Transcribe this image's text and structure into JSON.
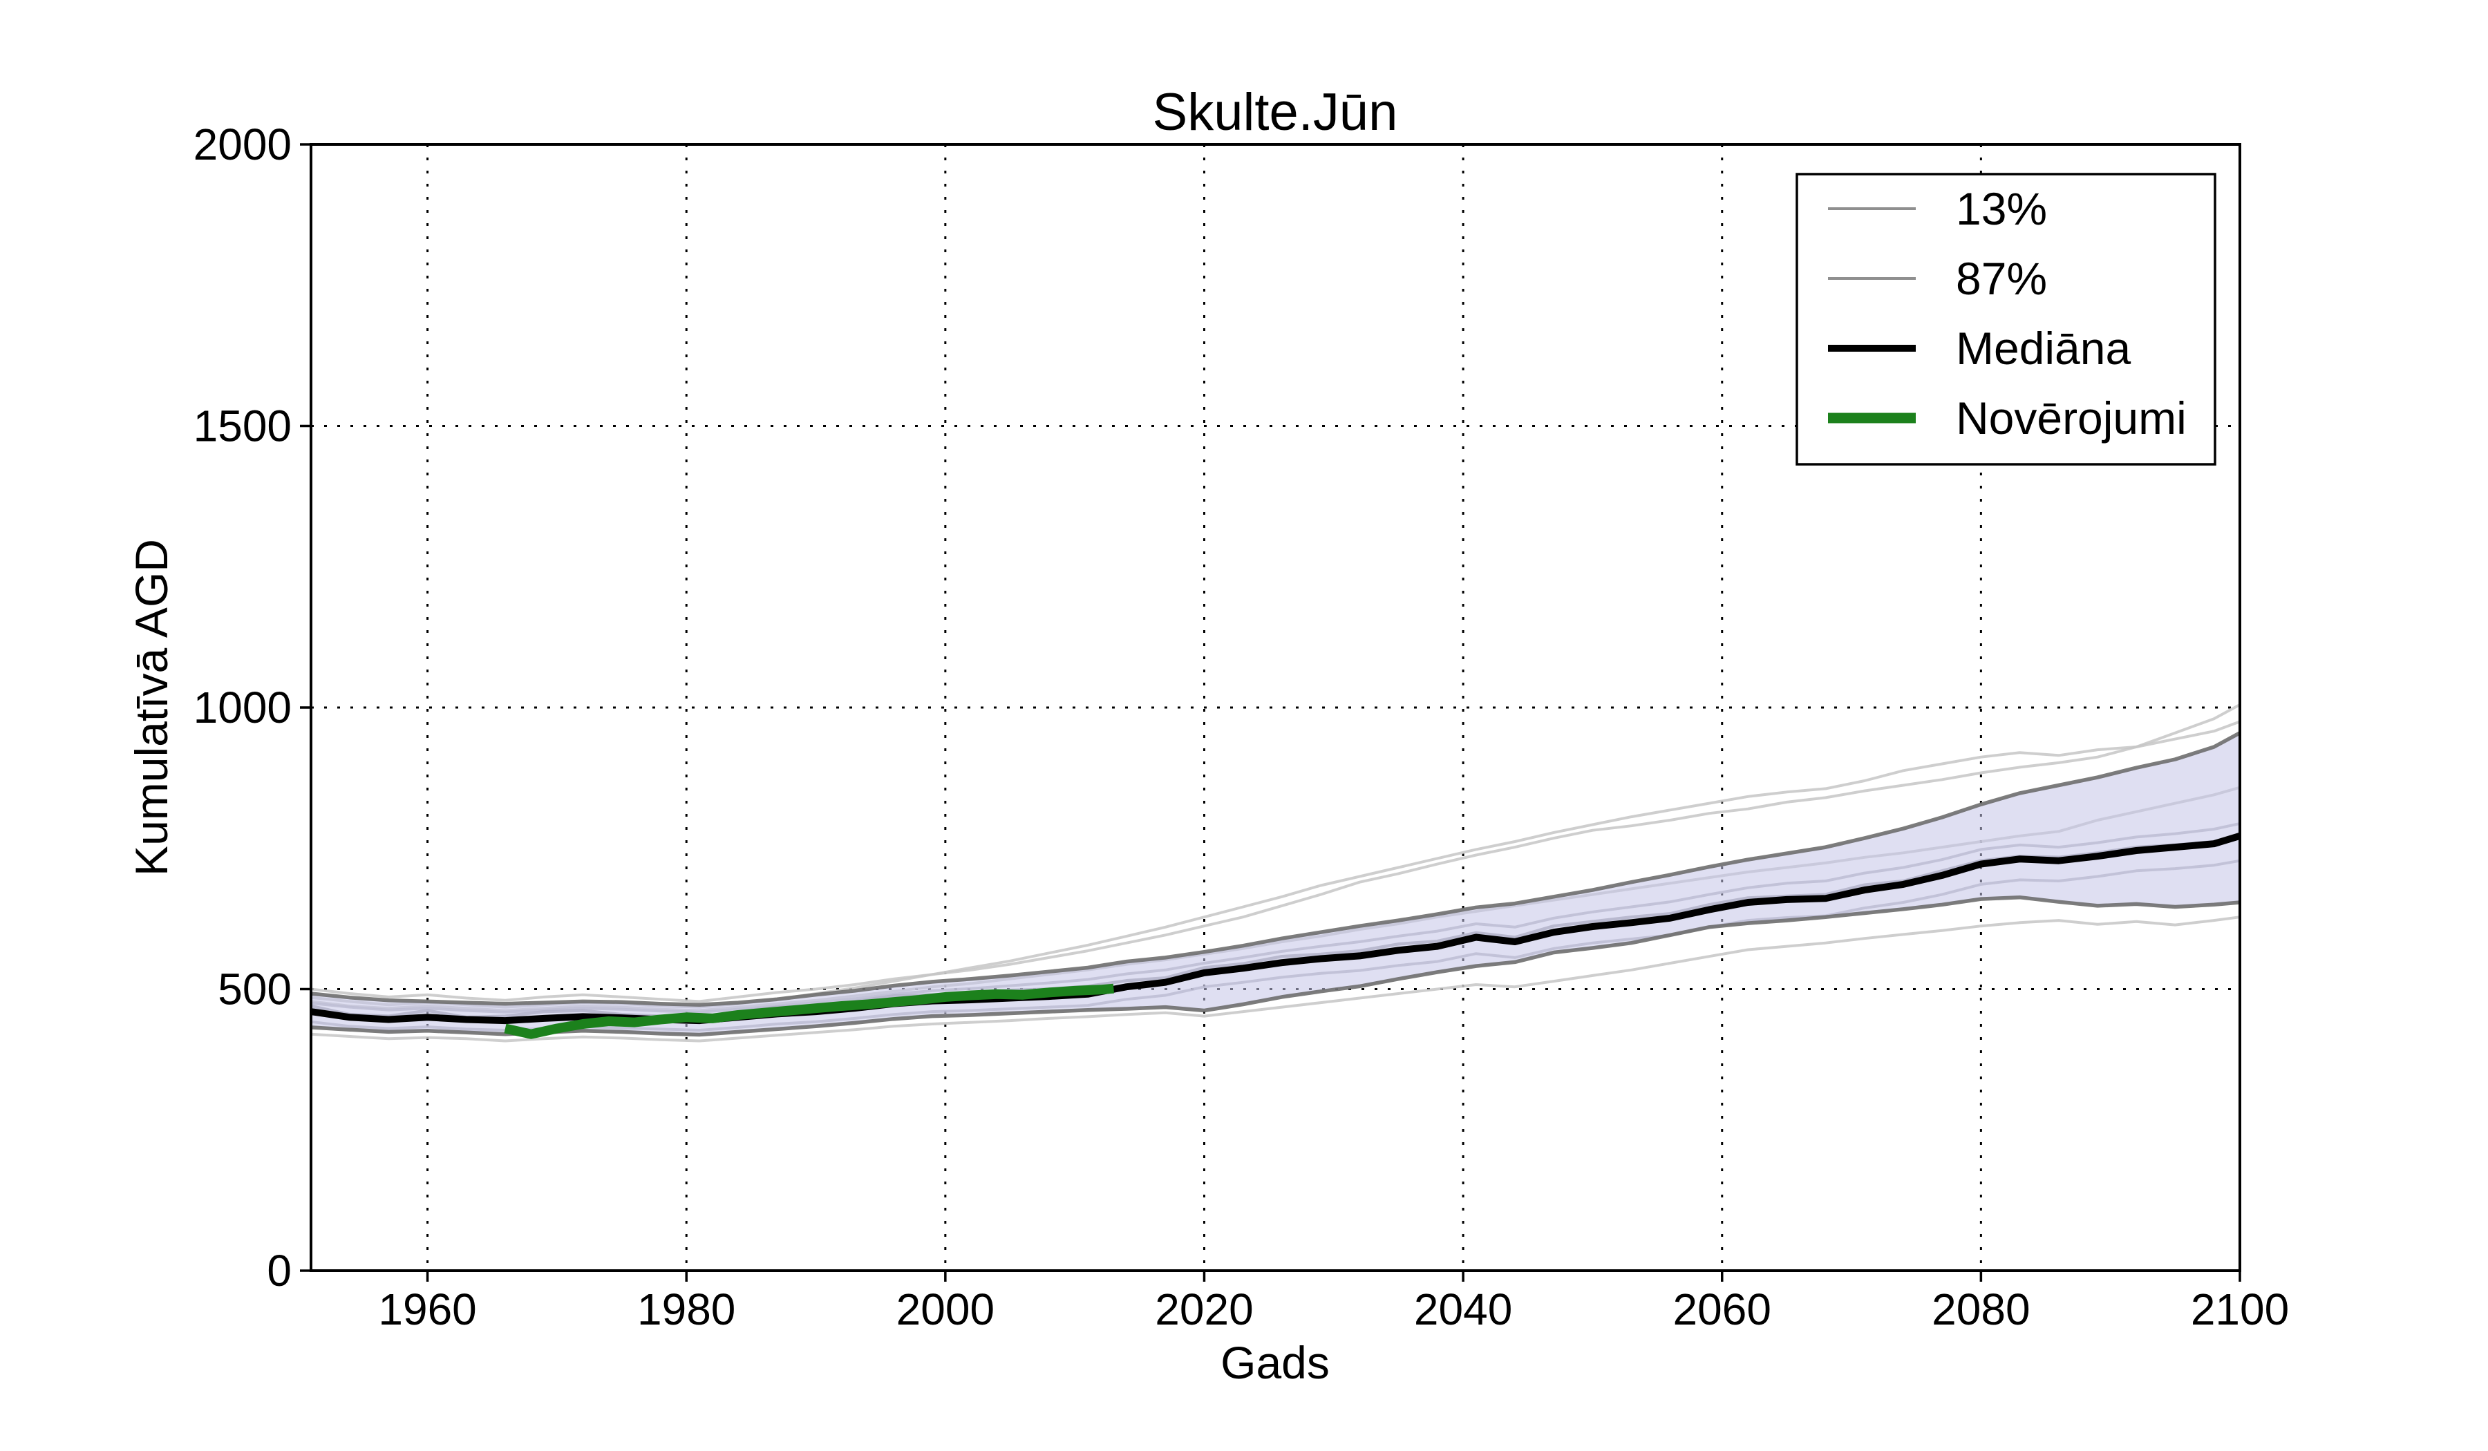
{
  "figure": {
    "background": "#ffffff",
    "frame_color": "#000000"
  },
  "chart_data": {
    "type": "line",
    "title": "Skulte.Jūn",
    "xlabel": "Gads",
    "ylabel": "Kumulatīvā AGD",
    "xlim": [
      1951,
      2100
    ],
    "ylim": [
      0,
      2000
    ],
    "x_ticks": [
      1960,
      1980,
      2000,
      2020,
      2040,
      2060,
      2080,
      2100
    ],
    "y_ticks": [
      0,
      500,
      1000,
      1500,
      2000
    ],
    "grid": "dotted",
    "grid_color": "#000000",
    "years": [
      1951,
      1954,
      1957,
      1960,
      1963,
      1966,
      1969,
      1972,
      1975,
      1978,
      1981,
      1984,
      1987,
      1990,
      1993,
      1996,
      1999,
      2002,
      2005,
      2008,
      2011,
      2014,
      2017,
      2020,
      2023,
      2026,
      2029,
      2032,
      2035,
      2038,
      2041,
      2044,
      2047,
      2050,
      2053,
      2056,
      2059,
      2062,
      2065,
      2068,
      2071,
      2074,
      2077,
      2080,
      2083,
      2086,
      2089,
      2092,
      2095,
      2098,
      2100
    ],
    "band": {
      "fill": "#c4c4e8",
      "opacity": 0.55
    },
    "percentile_lower": {
      "name": "13%",
      "color": "#6e6e6e",
      "width": 5.5,
      "values": [
        432,
        428,
        424,
        426,
        423,
        420,
        423,
        426,
        424,
        421,
        419,
        424,
        429,
        434,
        440,
        447,
        452,
        454,
        457,
        460,
        463,
        465,
        468,
        462,
        473,
        486,
        496,
        505,
        518,
        530,
        541,
        548,
        565,
        573,
        582,
        596,
        610,
        617,
        622,
        628,
        635,
        642,
        650,
        660,
        663,
        655,
        648,
        651,
        646,
        650,
        654
      ]
    },
    "percentile_upper": {
      "name": "87%",
      "color": "#6e6e6e",
      "width": 5.5,
      "values": [
        492,
        485,
        480,
        478,
        476,
        474,
        476,
        478,
        477,
        474,
        472,
        476,
        482,
        490,
        497,
        506,
        513,
        518,
        524,
        531,
        538,
        549,
        556,
        566,
        577,
        590,
        601,
        612,
        622,
        633,
        645,
        652,
        664,
        676,
        690,
        703,
        717,
        730,
        741,
        752,
        768,
        785,
        805,
        828,
        848,
        862,
        876,
        893,
        908,
        930,
        955
      ]
    },
    "median": {
      "name": "Mediāna",
      "color": "#000000",
      "width": 10,
      "values": [
        460,
        450,
        446,
        450,
        446,
        444,
        448,
        451,
        449,
        446,
        444,
        450,
        456,
        460,
        466,
        474,
        479,
        481,
        484,
        487,
        491,
        504,
        512,
        529,
        537,
        547,
        554,
        559,
        569,
        576,
        592,
        584,
        601,
        611,
        618,
        626,
        641,
        654,
        659,
        661,
        676,
        686,
        702,
        722,
        731,
        728,
        736,
        746,
        752,
        758,
        772
      ]
    },
    "observations": {
      "name": "Novērojumi",
      "color": "#1c811c",
      "width": 14,
      "years": [
        1966,
        1968,
        1970,
        1972,
        1974,
        1976,
        1978,
        1980,
        1982,
        1984,
        1986,
        1988,
        1990,
        1992,
        1994,
        1996,
        1998,
        2000,
        2002,
        2004,
        2006,
        2008,
        2010,
        2012,
        2013
      ],
      "values": [
        430,
        420,
        430,
        438,
        443,
        441,
        446,
        450,
        448,
        454,
        458,
        462,
        466,
        470,
        473,
        477,
        481,
        486,
        489,
        491,
        490,
        494,
        497,
        499,
        501
      ]
    },
    "ensemble_members": [
      {
        "color": "#c6c6c6",
        "width": 4,
        "values": [
          500,
          492,
          486,
          490,
          484,
          480,
          486,
          490,
          486,
          482,
          478,
          486,
          494,
          500,
          508,
          518,
          526,
          534,
          544,
          556,
          568,
          582,
          596,
          612,
          628,
          648,
          668,
          690,
          705,
          722,
          738,
          752,
          768,
          782,
          790,
          800,
          812,
          820,
          832,
          840,
          852,
          862,
          872,
          884,
          894,
          902,
          912,
          930,
          955,
          980,
          1005
        ]
      },
      {
        "color": "#c6c6c6",
        "width": 4,
        "values": [
          478,
          470,
          466,
          470,
          466,
          462,
          466,
          470,
          468,
          464,
          462,
          468,
          474,
          480,
          488,
          496,
          504,
          510,
          518,
          526,
          534,
          544,
          552,
          562,
          572,
          584,
          594,
          606,
          616,
          628,
          638,
          648,
          658,
          668,
          678,
          688,
          698,
          708,
          716,
          724,
          734,
          742,
          752,
          762,
          772,
          780,
          800,
          815,
          830,
          845,
          858
        ]
      },
      {
        "color": "#c6c6c6",
        "width": 4,
        "values": [
          420,
          416,
          412,
          414,
          412,
          408,
          412,
          415,
          413,
          410,
          408,
          413,
          418,
          423,
          428,
          434,
          438,
          441,
          444,
          448,
          451,
          455,
          458,
          452,
          460,
          468,
          476,
          484,
          492,
          500,
          508,
          504,
          514,
          524,
          534,
          546,
          558,
          570,
          576,
          582,
          590,
          597,
          604,
          612,
          618,
          622,
          615,
          620,
          614,
          622,
          628
        ]
      },
      {
        "color": "#b4b4bc",
        "width": 4,
        "values": [
          475,
          468,
          463,
          466,
          462,
          459,
          463,
          466,
          464,
          461,
          459,
          464,
          470,
          476,
          483,
          491,
          497,
          501,
          506,
          511,
          517,
          527,
          534,
          546,
          556,
          567,
          576,
          584,
          594,
          603,
          616,
          610,
          626,
          637,
          646,
          655,
          668,
          680,
          688,
          692,
          706,
          716,
          730,
          748,
          756,
          752,
          760,
          770,
          776,
          784,
          794
        ]
      },
      {
        "color": "#b4b4bc",
        "width": 4,
        "values": [
          442,
          434,
          430,
          433,
          429,
          427,
          430,
          433,
          431,
          429,
          427,
          432,
          438,
          442,
          448,
          455,
          460,
          462,
          465,
          468,
          471,
          482,
          489,
          504,
          512,
          521,
          528,
          533,
          542,
          549,
          563,
          556,
          572,
          582,
          589,
          596,
          610,
          622,
          627,
          630,
          644,
          654,
          668,
          686,
          694,
          692,
          700,
          710,
          714,
          720,
          728
        ]
      },
      {
        "color": "#9b9ba3",
        "width": 4.5,
        "values": [
          470,
          455,
          452,
          462,
          450,
          452,
          460,
          462,
          455,
          452,
          450,
          460,
          468,
          470,
          478,
          488,
          490,
          492,
          498,
          500,
          505,
          515,
          520,
          538,
          545,
          558,
          562,
          568,
          580,
          585,
          600,
          592,
          612,
          620,
          628,
          634,
          650,
          662,
          665,
          668,
          685,
          692,
          710,
          728,
          736,
          734,
          742,
          752,
          756,
          762,
          770
        ]
      },
      {
        "color": "#c6c6c6",
        "width": 4,
        "values": [
          485,
          478,
          472,
          476,
          472,
          468,
          472,
          476,
          474,
          470,
          468,
          474,
          482,
          492,
          502,
          514,
          526,
          538,
          550,
          564,
          578,
          594,
          610,
          628,
          646,
          664,
          684,
          700,
          716,
          732,
          748,
          762,
          778,
          792,
          806,
          818,
          830,
          842,
          850,
          856,
          870,
          888,
          900,
          912,
          920,
          915,
          925,
          930,
          944,
          958,
          975
        ]
      }
    ]
  },
  "legend": {
    "items": [
      {
        "label": "13%",
        "color": "#8f8f8f",
        "line_width": 4
      },
      {
        "label": "87%",
        "color": "#8f8f8f",
        "line_width": 4
      },
      {
        "label": "Mediāna",
        "color": "#000000",
        "line_width": 10
      },
      {
        "label": "Novērojumi",
        "color": "#1c811c",
        "line_width": 15
      }
    ]
  }
}
